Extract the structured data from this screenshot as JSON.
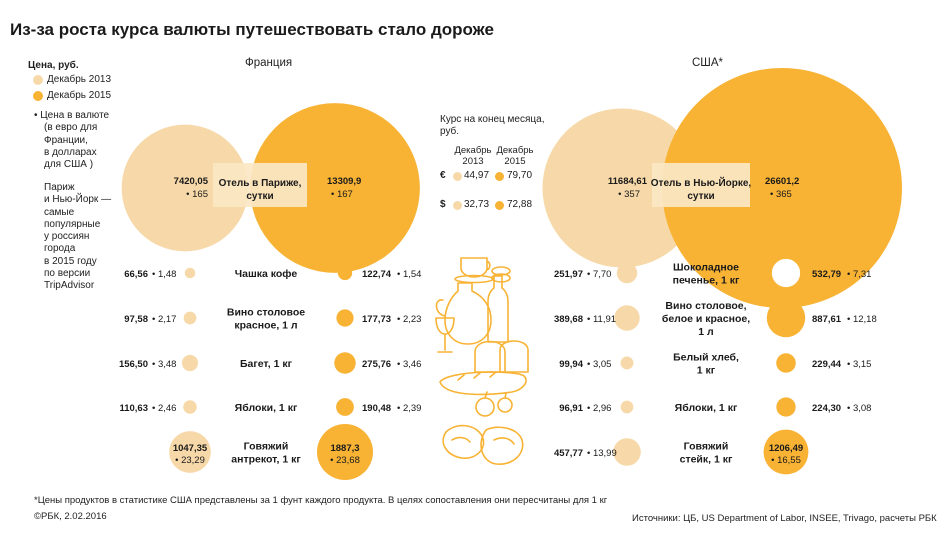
{
  "title": "Из-за роста курса валюты путешествовать стало дороже",
  "legend": {
    "header": "Цена, руб.",
    "dec2013": "Декабрь 2013",
    "dec2015": "Декабрь 2015",
    "foreign_note": [
      "• Цена в валюте",
      "(в евро для",
      "Франции,",
      "в долларах",
      "для США )"
    ],
    "basket_note": [
      "Париж",
      "и Нью-Йорк —",
      "самые",
      "популярные",
      "у россиян",
      "города",
      "в 2015 году",
      "по версии",
      "TripAdvisor"
    ]
  },
  "countries": {
    "france": "Франция",
    "usa": "США*"
  },
  "colors": {
    "c2013": "#f7d9a9",
    "c2015": "#f8b335",
    "dark": "#1a1a1a"
  },
  "rates": {
    "header": [
      "Курс на конец месяца,",
      "руб."
    ],
    "col2013": [
      "Декабрь",
      "2013"
    ],
    "col2015": [
      "Декабрь",
      "2015"
    ],
    "euro": {
      "symbol": "€",
      "v2013": "44,97",
      "v2015": "79,70"
    },
    "dollar": {
      "symbol": "$",
      "v2013": "32,73",
      "v2015": "72,88"
    }
  },
  "chart_data": {
    "type": "bubble",
    "units": "руб.",
    "series": [
      {
        "name": "Декабрь 2013"
      },
      {
        "name": "Декабрь 2015"
      }
    ],
    "hotels": {
      "france": {
        "label": [
          "Отель в Париже,",
          "сутки"
        ],
        "rub2013": 7420.05,
        "cur2013": 165,
        "rub2015": 13309.9,
        "cur2015": 167,
        "t2013": "7420,05",
        "f2013": "• 165",
        "t2015": "13309,9",
        "f2015": "• 167"
      },
      "usa": {
        "label": [
          "Отель в Нью-Йорке,",
          "сутки"
        ],
        "rub2013": 11684.61,
        "cur2013": 357,
        "rub2015": 26601.2,
        "cur2015": 365,
        "t2013": "11684,61",
        "f2013": "• 357",
        "t2015": "26601,2",
        "f2015": "• 365"
      }
    },
    "france": [
      {
        "label": [
          "Чашка кофе"
        ],
        "rub2013": 66.56,
        "cur2013": 1.48,
        "rub2015": 122.74,
        "cur2015": 1.54,
        "t2013": "66,56",
        "f2013": "• 1,48",
        "t2015": "122,74",
        "f2015": "• 1,54"
      },
      {
        "label": [
          "Вино столовое",
          "красное, 1 л"
        ],
        "rub2013": 97.58,
        "cur2013": 2.17,
        "rub2015": 177.73,
        "cur2015": 2.23,
        "t2013": "97,58",
        "f2013": "• 2,17",
        "t2015": "177,73",
        "f2015": "• 2,23"
      },
      {
        "label": [
          "Багет, 1 кг"
        ],
        "rub2013": 156.5,
        "cur2013": 3.48,
        "rub2015": 275.76,
        "cur2015": 3.46,
        "t2013": "156,50",
        "f2013": "• 3,48",
        "t2015": "275,76",
        "f2015": "• 3,46"
      },
      {
        "label": [
          "Яблоки, 1 кг"
        ],
        "rub2013": 110.63,
        "cur2013": 2.46,
        "rub2015": 190.48,
        "cur2015": 2.39,
        "t2013": "110,63",
        "f2013": "• 2,46",
        "t2015": "190,48",
        "f2015": "• 2,39"
      },
      {
        "label": [
          "Говяжий",
          "антрекот, 1 кг"
        ],
        "rub2013": 1047.35,
        "cur2013": 23.29,
        "rub2015": 1887.3,
        "cur2015": 23.68,
        "t2013": "1047,35",
        "f2013": "• 23,29",
        "t2015": "1887,3",
        "f2015": "• 23,68"
      }
    ],
    "usa": [
      {
        "label": [
          "Шоколадное",
          "печенье, 1 кг"
        ],
        "rub2013": 251.97,
        "cur2013": 7.7,
        "rub2015": 532.79,
        "cur2015": 7.31,
        "t2013": "251,97",
        "f2013": "• 7,70",
        "t2015": "532,79",
        "f2015": "• 7,31"
      },
      {
        "label": [
          "Вино столовое,",
          "белое и красное,",
          "1 л"
        ],
        "rub2013": 389.68,
        "cur2013": 11.91,
        "rub2015": 887.61,
        "cur2015": 12.18,
        "t2013": "389,68",
        "f2013": "• 11,91",
        "t2015": "887,61",
        "f2015": "• 12,18"
      },
      {
        "label": [
          "Белый хлеб,",
          "1 кг"
        ],
        "rub2013": 99.94,
        "cur2013": 3.05,
        "rub2015": 229.44,
        "cur2015": 3.15,
        "t2013": "99,94",
        "f2013": "• 3,05",
        "t2015": "229,44",
        "f2015": "• 3,15"
      },
      {
        "label": [
          "Яблоки, 1 кг"
        ],
        "rub2013": 96.91,
        "cur2013": 2.96,
        "rub2015": 224.3,
        "cur2015": 3.08,
        "t2013": "96,91",
        "f2013": "• 2,96",
        "t2015": "224,30",
        "f2015": "• 3,08"
      },
      {
        "label": [
          "Говяжий",
          "стейк, 1 кг"
        ],
        "rub2013": 457.77,
        "cur2013": 13.99,
        "rub2015": 1206.49,
        "cur2015": 16.55,
        "t2013": "457,77",
        "f2013": "• 13,99",
        "t2015": "1206,49",
        "f2015": "• 16,55"
      }
    ]
  },
  "footnote": "*Цены продуктов в статистике США представлены за 1 фунт каждого продукта. В целях сопоставления они пересчитаны для 1 кг",
  "credit": "©РБК, 2.02.2016",
  "sources": "Источники: ЦБ, US Department of Labor, INSEE, Trivago, расчеты РБК"
}
